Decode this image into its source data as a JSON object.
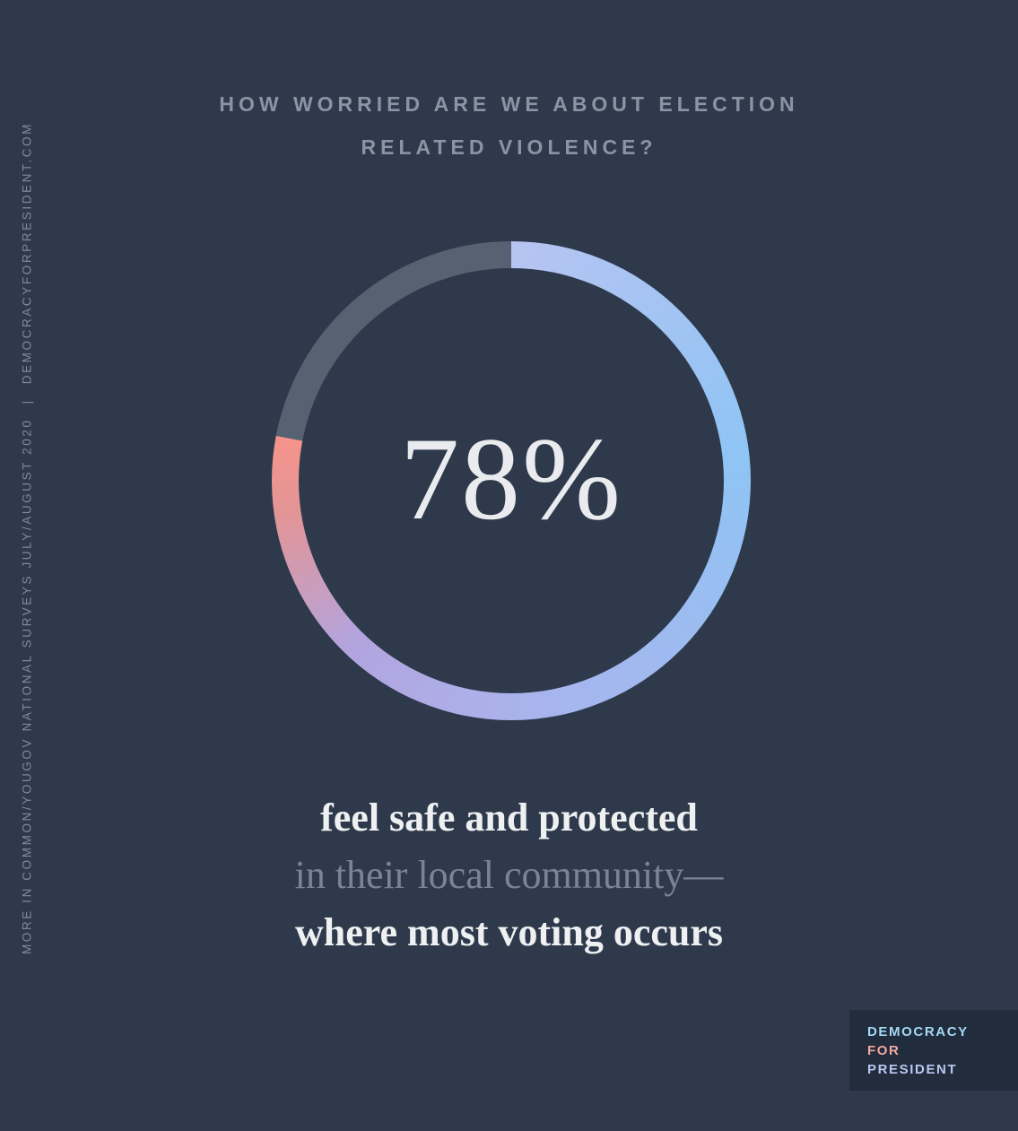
{
  "colors": {
    "background": "#2e3a4b",
    "title_text": "#8b94a5",
    "sidebar_text": "#7f8a9b",
    "center_label_text": "#e9ebee",
    "caption_strong": "#eef0f2",
    "caption_muted": "#7a8496",
    "logo_box_background": "#212d3c"
  },
  "title": {
    "line1": "HOW WORRIED ARE WE ABOUT ELECTION",
    "line2": "RELATED VIOLENCE?"
  },
  "sidebar": {
    "credit": "MORE IN COMMON/YOUGOV NATIONAL SURVEYS JULY/AUGUST 2020",
    "separator": "|",
    "site": "DEMOCRACYFORPRESIDENT.COM"
  },
  "chart_data": {
    "type": "pie",
    "donut": true,
    "title": "How worried are we about election related violence?",
    "categories": [
      "feel safe and protected in their local community",
      "remainder"
    ],
    "values": [
      78,
      22
    ],
    "center_label": "78%",
    "start_angle_deg": 0,
    "direction": "clockwise",
    "arc_gradient_stops": [
      {
        "at": 0.0,
        "color": "#b7c4f2"
      },
      {
        "at": 0.3,
        "color": "#8fc4f4"
      },
      {
        "at": 0.62,
        "color": "#a9b4ed"
      },
      {
        "at": 0.8,
        "color": "#b3a4de"
      },
      {
        "at": 0.93,
        "color": "#e29597"
      },
      {
        "at": 1.0,
        "color": "#f5948b"
      }
    ],
    "remainder_color": "#566171",
    "ring_thickness_px": 30,
    "legend_position": "none",
    "grid": false
  },
  "caption": {
    "line1": "feel safe and protected",
    "line2": "in their local community—",
    "line3": "where most voting occurs"
  },
  "logo": {
    "lines": [
      {
        "text": "DEMOCRACY",
        "color": "#a5d8f5"
      },
      {
        "text": "FOR",
        "color": "#f2a79e"
      },
      {
        "text": "PRESIDENT",
        "color": "#bcc6f2"
      }
    ]
  }
}
